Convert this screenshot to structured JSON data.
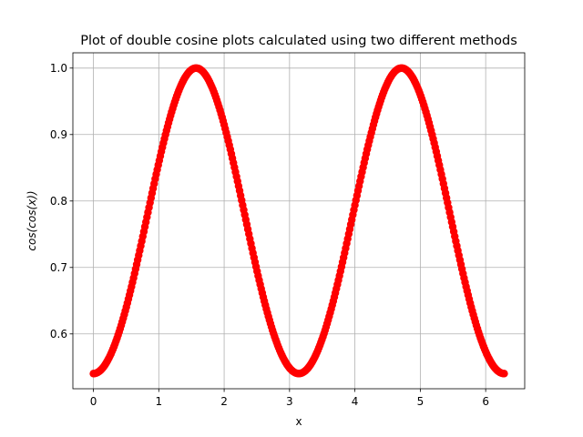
{
  "chart_data": {
    "type": "scatter",
    "title": "Plot of double cosine plots calculated using two different methods",
    "xlabel": "x",
    "ylabel_parts": [
      "cos(cos(",
      "x",
      "))"
    ],
    "xlim": [
      -0.314,
      6.597
    ],
    "ylim": [
      0.5175,
      1.023
    ],
    "xticks": [
      0,
      1,
      2,
      3,
      4,
      5,
      6
    ],
    "yticks": [
      0.6,
      0.7,
      0.8,
      0.9,
      1.0
    ],
    "xtick_labels": [
      "0",
      "1",
      "2",
      "3",
      "4",
      "5",
      "6"
    ],
    "ytick_labels": [
      "0.6",
      "0.7",
      "0.8",
      "0.9",
      "1.0"
    ],
    "grid": true,
    "marker_color": "#ff0000",
    "x_range": [
      0,
      6.2832
    ],
    "n_points": 400,
    "series": [
      {
        "x": [
          0.0,
          0.2,
          0.4,
          0.6,
          0.8,
          1.0,
          1.2,
          1.4,
          1.5708,
          1.8,
          2.0,
          2.2,
          2.4,
          2.6,
          2.8,
          3.0,
          3.1416,
          3.4,
          3.6,
          3.8,
          4.0,
          4.2,
          4.4,
          4.6,
          4.7124,
          5.0,
          5.2,
          5.4,
          5.6,
          5.8,
          6.0,
          6.2832
        ],
        "y": [
          0.5403,
          0.5513,
          0.5839,
          0.6374,
          0.7084,
          0.7859,
          0.8847,
          0.9737,
          1.0,
          0.9765,
          0.9153,
          0.8301,
          0.7418,
          0.6637,
          0.6045,
          0.5511,
          0.5403,
          0.5674,
          0.6214,
          0.6956,
          0.7923,
          0.8745,
          0.9491,
          0.9933,
          1.0,
          0.9608,
          0.9023,
          0.8147,
          0.7224,
          0.6506,
          0.5924,
          0.5403
        ]
      }
    ]
  }
}
